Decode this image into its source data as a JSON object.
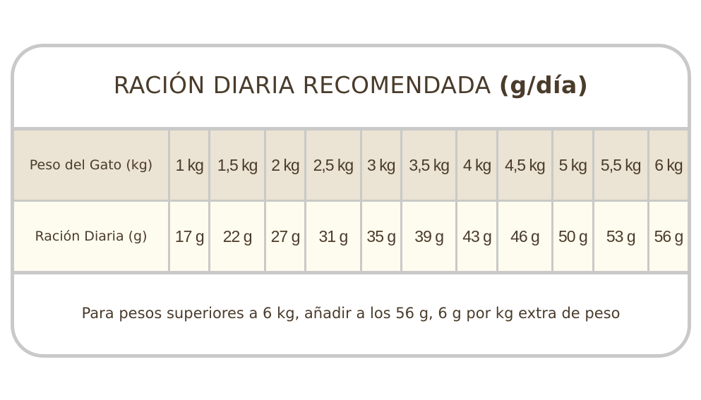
{
  "title": {
    "main": "RACIÓN DIARIA RECOMENDADA",
    "unit": "(g/día)"
  },
  "table": {
    "weight_label": "Peso del Gato (kg)",
    "ration_label": "Ración Diaria (g)",
    "weights": [
      "1 kg",
      "1,5 kg",
      "2 kg",
      "2,5 kg",
      "3 kg",
      "3,5 kg",
      "4 kg",
      "4,5 kg",
      "5 kg",
      "5,5 kg",
      "6 kg"
    ],
    "rations": [
      "17 g",
      "22 g",
      "27 g",
      "31 g",
      "35 g",
      "39 g",
      "43 g",
      "46 g",
      "50 g",
      "53 g",
      "56 g"
    ]
  },
  "note": "Para pesos superiores a 6 kg, añadir a los 56 g, 6 g por kg extra de peso",
  "colors": {
    "header_bg": "#ebe3d3",
    "row_bg": "#fefcee",
    "border": "#c9c9c9",
    "text": "#4a3b2b"
  }
}
